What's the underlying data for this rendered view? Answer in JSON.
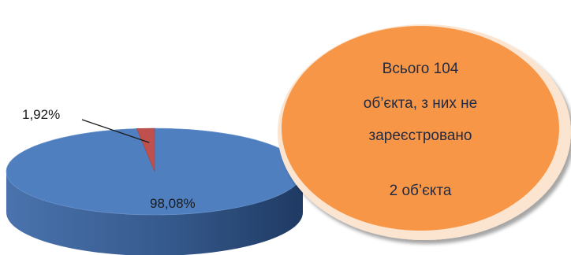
{
  "chart_data": {
    "type": "pie",
    "style": "3d",
    "slices": [
      {
        "label": "98,08%",
        "value": 98.08,
        "color": "#4f7fbf"
      },
      {
        "label": "1,92%",
        "value": 1.92,
        "color": "#c0504d"
      }
    ],
    "legend": "none",
    "title": ""
  },
  "callout": {
    "color": "#f79646",
    "lines": [
      "Всього 104",
      "об’єкта, з них не",
      "зареєстровано",
      "2 об’єкта"
    ]
  }
}
